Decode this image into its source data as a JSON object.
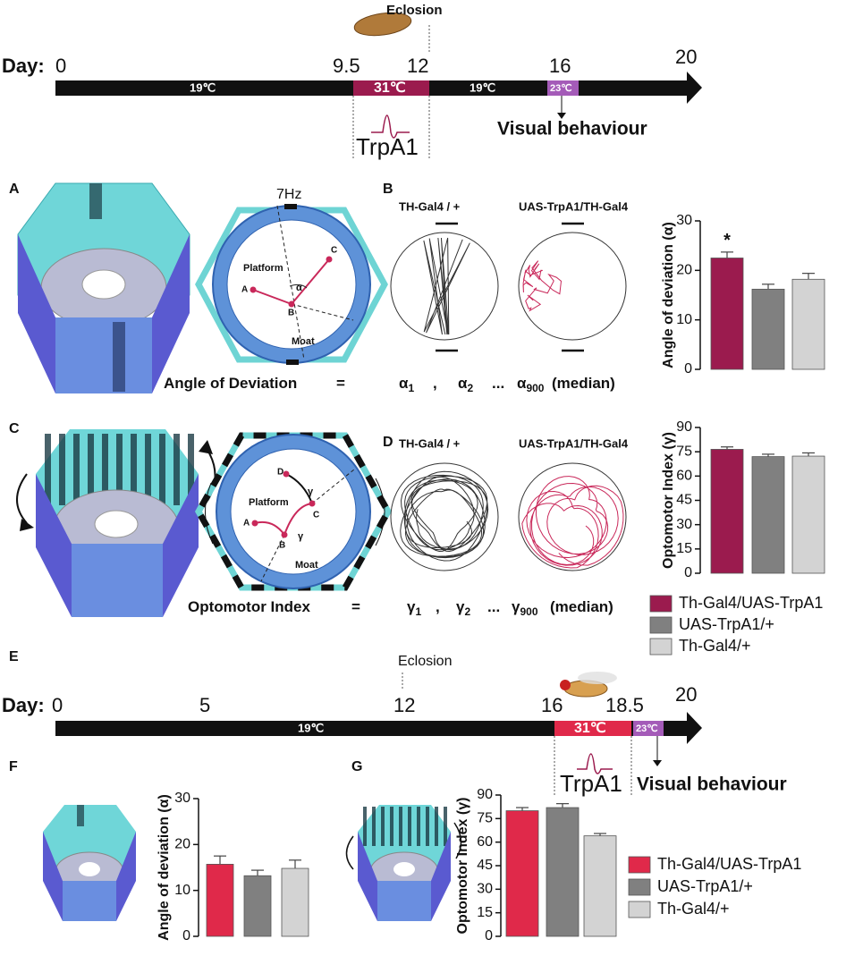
{
  "timeline_top": {
    "day_label": "Day:",
    "days": [
      "0",
      "9.5",
      "12",
      "16",
      "20"
    ],
    "temps": [
      "19℃",
      "31℃",
      "19℃",
      "23℃"
    ],
    "eclosion": "Eclosion",
    "trpa1": "TrpA1",
    "visual": "Visual behaviour"
  },
  "panel_labels": [
    "A",
    "B",
    "C",
    "D",
    "E",
    "F",
    "G"
  ],
  "panel_a": {
    "stimulus": "7Hz",
    "platform": "Platform",
    "moat": "Moat",
    "points": [
      "A",
      "B",
      "C"
    ],
    "angle": "α"
  },
  "panel_b": {
    "genotypes": [
      "TH-Gal4 / +",
      "UAS-TrpA1/TH-Gal4"
    ]
  },
  "equation_deviation": {
    "lhs": "Angle of Deviation",
    "eq": "=",
    "symbol": "α",
    "subscripts": [
      "1",
      "2",
      "900"
    ],
    "sep": ",",
    "ellipsis": "...",
    "note": "(median)"
  },
  "panel_c": {
    "platform": "Platform",
    "moat": "Moat",
    "points": [
      "A",
      "B",
      "C",
      "D"
    ],
    "angle": "γ"
  },
  "panel_d": {
    "genotypes": [
      "TH-Gal4 / +",
      "UAS-TrpA1/TH-Gal4"
    ]
  },
  "equation_optomotor": {
    "lhs": "Optomotor Index",
    "eq": "=",
    "symbol": "γ",
    "subscripts": [
      "1",
      "2",
      "900"
    ],
    "sep": ",",
    "ellipsis": "...",
    "note": "(median)"
  },
  "timeline_bottom": {
    "day_label": "Day:",
    "days": [
      "0",
      "5",
      "12",
      "16",
      "18.5",
      "20"
    ],
    "temps": [
      "19℃",
      "31℃",
      "23℃"
    ],
    "eclosion": "Eclosion",
    "trpa1": "TrpA1",
    "visual": "Visual behaviour"
  },
  "chart_data": [
    {
      "type": "bar",
      "y_label": "Angle of deviation (α)",
      "ylim": [
        0,
        30
      ],
      "yticks": [
        0,
        10,
        20,
        30
      ],
      "annotation": "*",
      "legend": false,
      "series": [
        {
          "color": "#9b1b4e",
          "values": [
            22.5
          ],
          "errors": [
            1.2
          ]
        },
        {
          "color": "#808080",
          "values": [
            16.2
          ],
          "errors": [
            1.0
          ]
        },
        {
          "color": "#d3d3d3",
          "values": [
            18.2
          ],
          "errors": [
            1.2
          ]
        }
      ]
    },
    {
      "type": "bar",
      "y_label": "Optomotor Index (γ)",
      "ylim": [
        0,
        90
      ],
      "yticks": [
        0,
        15,
        30,
        45,
        60,
        75,
        90
      ],
      "legend": true,
      "series": [
        {
          "name": "Th-Gal4/UAS-TrpA1",
          "color": "#9b1b4e",
          "values": [
            76.5
          ],
          "errors": [
            1.5
          ]
        },
        {
          "name": "UAS-TrpA1/+",
          "color": "#808080",
          "values": [
            72
          ],
          "errors": [
            1.5
          ]
        },
        {
          "name": "Th-Gal4/+",
          "color": "#d3d3d3",
          "values": [
            72.3
          ],
          "errors": [
            2
          ]
        }
      ]
    },
    {
      "type": "bar",
      "y_label": "Angle of deviation (α)",
      "ylim": [
        0,
        30
      ],
      "yticks": [
        0,
        10,
        20,
        30
      ],
      "legend": false,
      "series": [
        {
          "color": "#e0294a",
          "values": [
            15.7
          ],
          "errors": [
            1.8
          ]
        },
        {
          "color": "#808080",
          "values": [
            13.2
          ],
          "errors": [
            1.2
          ]
        },
        {
          "color": "#d3d3d3",
          "values": [
            14.8
          ],
          "errors": [
            1.8
          ]
        }
      ]
    },
    {
      "type": "bar",
      "y_label": "Optomotor Index (γ)",
      "ylim": [
        0,
        90
      ],
      "yticks": [
        0,
        15,
        30,
        45,
        60,
        75,
        90
      ],
      "legend": true,
      "series": [
        {
          "name": "Th-Gal4/UAS-TrpA1",
          "color": "#e0294a",
          "values": [
            80
          ],
          "errors": [
            2
          ]
        },
        {
          "name": "UAS-TrpA1/+",
          "color": "#808080",
          "values": [
            82
          ],
          "errors": [
            2.5
          ]
        },
        {
          "name": "Th-Gal4/+",
          "color": "#d3d3d3",
          "values": [
            64
          ],
          "errors": [
            1.5
          ]
        }
      ]
    }
  ]
}
